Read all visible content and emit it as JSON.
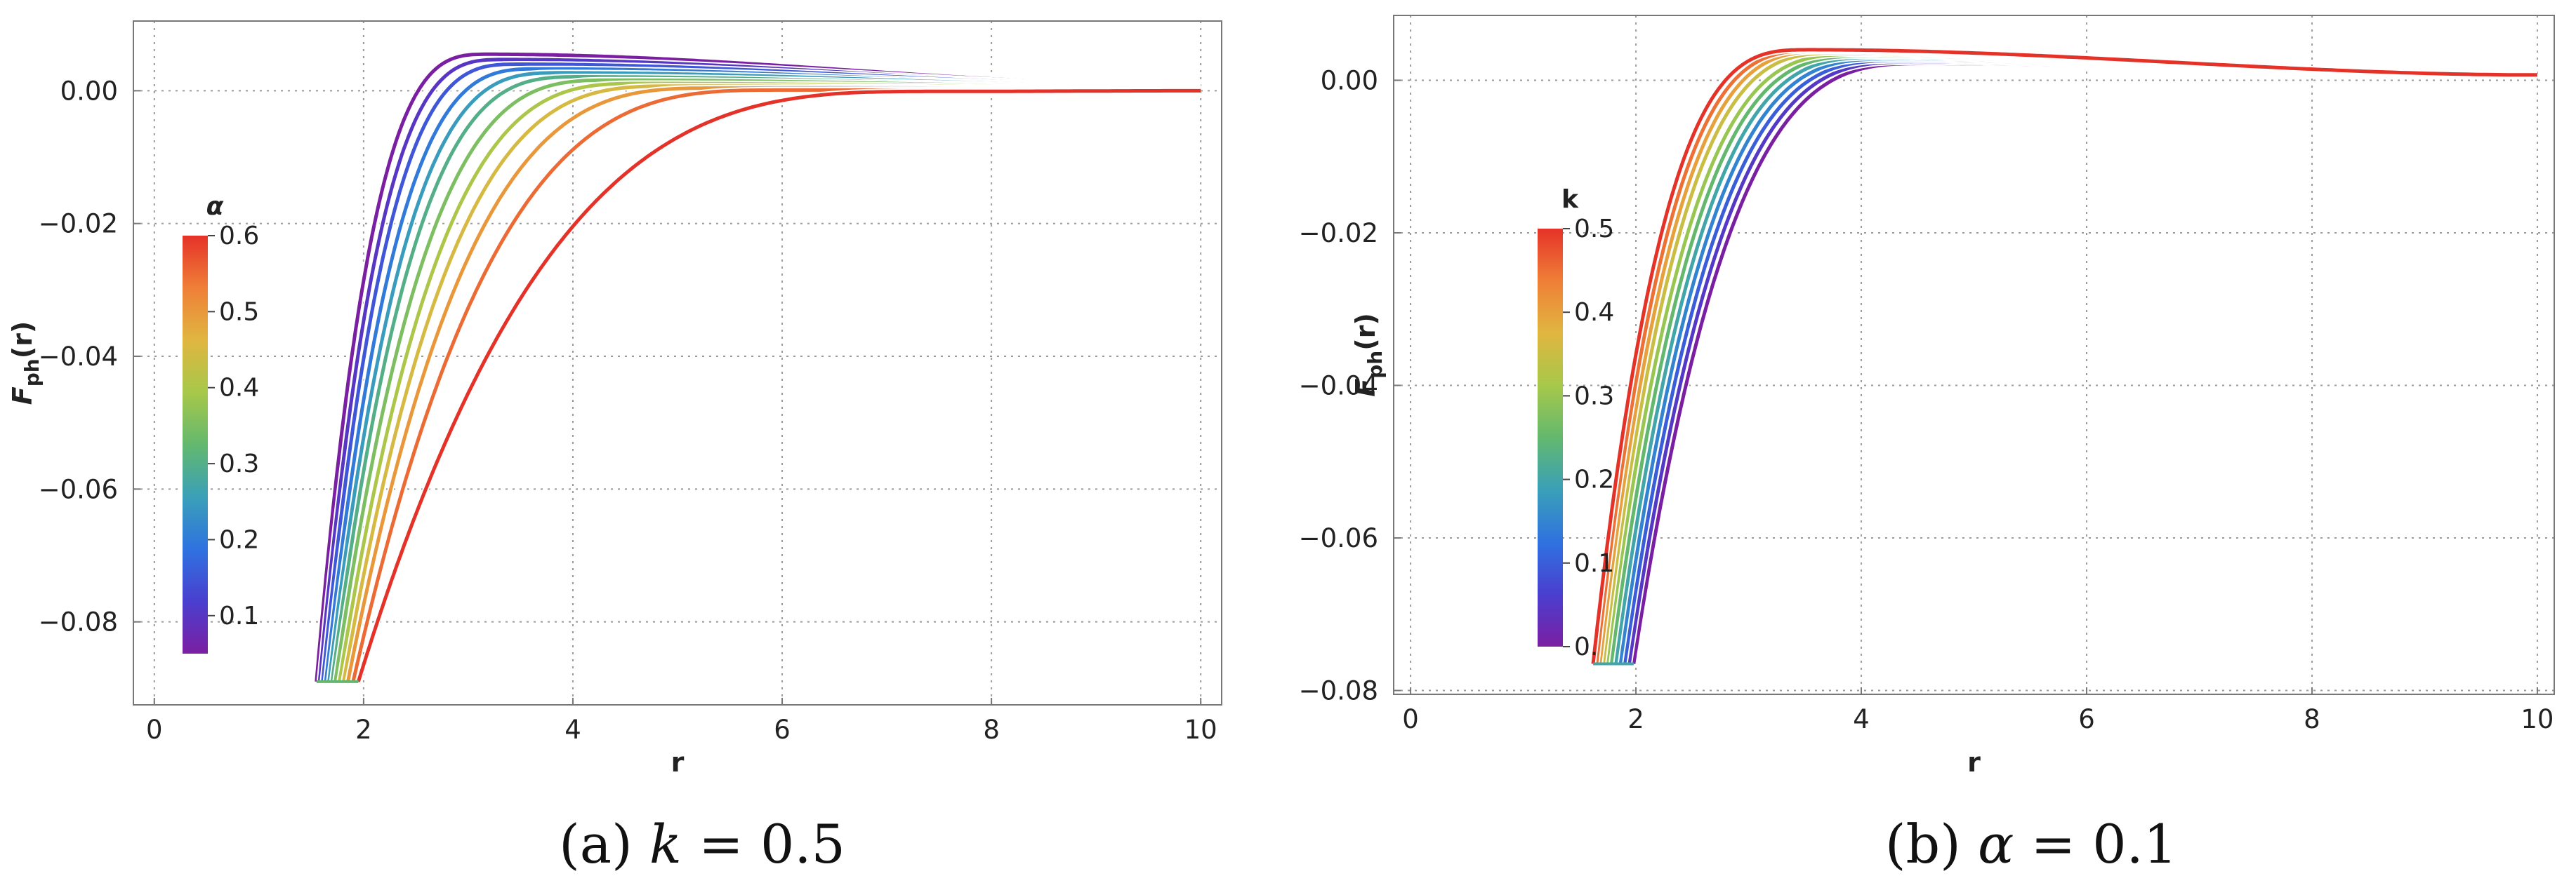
{
  "colors": [
    "#7b1fa2",
    "#4a3fcf",
    "#2f72e0",
    "#3aa0b8",
    "#63b86e",
    "#a7c84a",
    "#e0b640",
    "#ef7f37",
    "#e53229"
  ],
  "chart_data": [
    {
      "type": "line",
      "caption": "(a) k = 0.5",
      "xlabel": "r",
      "ylabel": "F_ph(r)",
      "xlim": [
        -0.2,
        10.2
      ],
      "ylim": [
        -0.0925,
        0.0105
      ],
      "xticks": [
        0,
        2,
        4,
        6,
        8,
        10
      ],
      "xtick_labels": [
        "0",
        "2",
        "4",
        "6",
        "8",
        "10"
      ],
      "yticks": [
        0.0,
        -0.02,
        -0.04,
        -0.06,
        -0.08
      ],
      "ytick_labels": [
        "0.00",
        "−0.02",
        "−0.04",
        "−0.06",
        "−0.08"
      ],
      "grid": true,
      "legend": {
        "type": "colorbar",
        "title": "α",
        "placement": "left",
        "range": [
          0.05,
          0.6
        ],
        "ticks": [
          0.1,
          0.2,
          0.3,
          0.4,
          0.5,
          0.6
        ],
        "tick_labels": [
          "0.1",
          "0.2",
          "0.3",
          "0.4",
          "0.5",
          "0.6"
        ]
      },
      "x_end": 10,
      "y_floor": -0.089,
      "series": [
        {
          "param": 0.05,
          "x_start": 1.55,
          "x_peak": 3.2,
          "y_peak": 0.0055,
          "y_end": 0.0008
        },
        {
          "param": 0.1,
          "x_start": 1.58,
          "x_peak": 3.35,
          "y_peak": 0.0047,
          "y_end": 0.0007
        },
        {
          "param": 0.15,
          "x_start": 1.61,
          "x_peak": 3.5,
          "y_peak": 0.004,
          "y_end": 0.0007
        },
        {
          "param": 0.2,
          "x_start": 1.64,
          "x_peak": 3.7,
          "y_peak": 0.0033,
          "y_end": 0.0006
        },
        {
          "param": 0.25,
          "x_start": 1.67,
          "x_peak": 3.9,
          "y_peak": 0.0027,
          "y_end": 0.0006
        },
        {
          "param": 0.3,
          "x_start": 1.7,
          "x_peak": 4.1,
          "y_peak": 0.0021,
          "y_end": 0.0005
        },
        {
          "param": 0.35,
          "x_start": 1.73,
          "x_peak": 4.4,
          "y_peak": 0.0016,
          "y_end": 0.0005
        },
        {
          "param": 0.4,
          "x_start": 1.77,
          "x_peak": 4.7,
          "y_peak": 0.0011,
          "y_end": 0.0004
        },
        {
          "param": 0.45,
          "x_start": 1.81,
          "x_peak": 5.0,
          "y_peak": 0.0007,
          "y_end": 0.0003
        },
        {
          "param": 0.5,
          "x_start": 1.85,
          "x_peak": 5.4,
          "y_peak": 0.0004,
          "y_end": 0.0002
        },
        {
          "param": 0.55,
          "x_start": 1.9,
          "x_peak": 6.0,
          "y_peak": 0.0001,
          "y_end": 0.0001
        },
        {
          "param": 0.6,
          "x_start": 1.95,
          "x_peak": 7.5,
          "y_peak": -0.0001,
          "y_end": 0.0
        }
      ]
    },
    {
      "type": "line",
      "caption": "(b) α = 0.1",
      "xlabel": "r",
      "ylabel": "F_ph(r)",
      "xlim": [
        -0.15,
        10.15
      ],
      "ylim": [
        -0.0805,
        0.0085
      ],
      "xticks": [
        0,
        2,
        4,
        6,
        8,
        10
      ],
      "xtick_labels": [
        "0",
        "2",
        "4",
        "6",
        "8",
        "10"
      ],
      "yticks": [
        0.0,
        -0.02,
        -0.04,
        -0.06,
        -0.08
      ],
      "ytick_labels": [
        "0.00",
        "−0.02",
        "−0.04",
        "−0.06",
        "−0.08"
      ],
      "grid": true,
      "legend": {
        "type": "colorbar",
        "title": "k",
        "placement": "left",
        "range": [
          0.0,
          0.5
        ],
        "ticks": [
          0.0,
          0.1,
          0.2,
          0.3,
          0.4,
          0.5
        ],
        "tick_labels": [
          "0.",
          "0.1",
          "0.2",
          "0.3",
          "0.4",
          "0.5"
        ]
      },
      "x_end": 10,
      "y_floor": -0.0765,
      "series": [
        {
          "param": 0.0,
          "x_start": 1.98,
          "x_peak": 4.6,
          "y_peak": 0.0022,
          "y_end": 0.0007
        },
        {
          "param": 0.05,
          "x_start": 1.94,
          "x_peak": 4.5,
          "y_peak": 0.0024,
          "y_end": 0.0007
        },
        {
          "param": 0.1,
          "x_start": 1.9,
          "x_peak": 4.4,
          "y_peak": 0.0026,
          "y_end": 0.0007
        },
        {
          "param": 0.15,
          "x_start": 1.86,
          "x_peak": 4.3,
          "y_peak": 0.0028,
          "y_end": 0.0007
        },
        {
          "param": 0.2,
          "x_start": 1.82,
          "x_peak": 4.2,
          "y_peak": 0.003,
          "y_end": 0.0007
        },
        {
          "param": 0.25,
          "x_start": 1.78,
          "x_peak": 4.1,
          "y_peak": 0.0032,
          "y_end": 0.0007
        },
        {
          "param": 0.3,
          "x_start": 1.74,
          "x_peak": 4.0,
          "y_peak": 0.0034,
          "y_end": 0.0007
        },
        {
          "param": 0.35,
          "x_start": 1.71,
          "x_peak": 3.85,
          "y_peak": 0.0036,
          "y_end": 0.0007
        },
        {
          "param": 0.4,
          "x_start": 1.68,
          "x_peak": 3.75,
          "y_peak": 0.0038,
          "y_end": 0.0007
        },
        {
          "param": 0.45,
          "x_start": 1.65,
          "x_peak": 3.65,
          "y_peak": 0.0039,
          "y_end": 0.0007
        },
        {
          "param": 0.5,
          "x_start": 1.62,
          "x_peak": 3.55,
          "y_peak": 0.004,
          "y_end": 0.0007
        }
      ]
    }
  ]
}
